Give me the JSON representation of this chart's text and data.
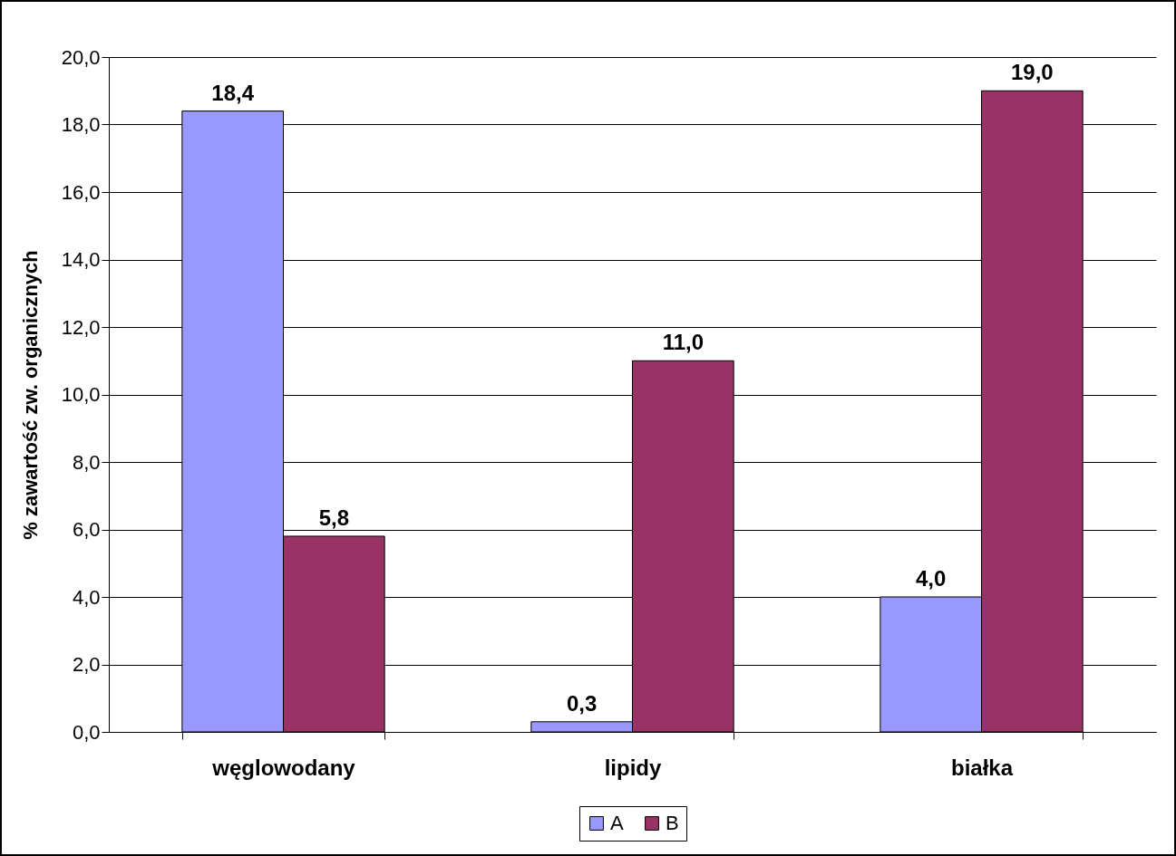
{
  "chart_data": {
    "type": "bar",
    "categories": [
      "węglowodany",
      "lipidy",
      "białka"
    ],
    "ylabel": "% zawartość zw. organicznych",
    "series": [
      {
        "name": "A",
        "color": "#9999ff",
        "values": [
          18.4,
          0.3,
          4.0
        ],
        "value_labels": [
          "18,4",
          "0,3",
          "4,0"
        ]
      },
      {
        "name": "B",
        "color": "#993366",
        "values": [
          5.8,
          11.0,
          19.0
        ],
        "value_labels": [
          "5,8",
          "11,0",
          "19,0"
        ]
      }
    ],
    "ylim": [
      0,
      20
    ],
    "yticks": [
      {
        "value": 0,
        "label": "0,0"
      },
      {
        "value": 2,
        "label": "2,0"
      },
      {
        "value": 4,
        "label": "4,0"
      },
      {
        "value": 6,
        "label": "6,0"
      },
      {
        "value": 8,
        "label": "8,0"
      },
      {
        "value": 10,
        "label": "10,0"
      },
      {
        "value": 12,
        "label": "12,0"
      },
      {
        "value": 14,
        "label": "14,0"
      },
      {
        "value": 16,
        "label": "16,0"
      },
      {
        "value": 18,
        "label": "18,0"
      },
      {
        "value": 20,
        "label": "20,0"
      }
    ],
    "grid": "y",
    "legend": "bottom"
  }
}
